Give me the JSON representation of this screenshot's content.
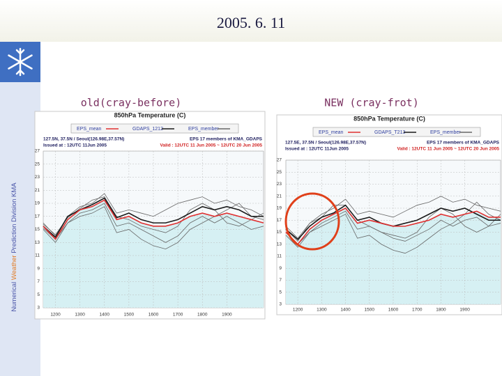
{
  "slide": {
    "title": "2005. 6. 11",
    "sidebar": [
      "Numerical",
      "Weather",
      "Prediction Division  KMA"
    ],
    "captions": [
      "old(cray-before)",
      "NEW (cray-frot)"
    ]
  },
  "chart_data": [
    {
      "type": "line",
      "title": "850hPa Temperature (C)",
      "info": [
        "127.5N, 37.5N / Seoul(126.98E,37.57N)",
        "Issued at : 12UTC 11Jun 2005",
        "EPS 17 members of KMA_GDAPS",
        "Valid : 12UTC 11 Jun 2005 ~ 12UTC 20 Jun 2005"
      ],
      "x": [
        11.5,
        12,
        12.5,
        13,
        13.5,
        14,
        14.5,
        15,
        15.5,
        16,
        16.5,
        17,
        17.5,
        18,
        18.5,
        19,
        19.5,
        20,
        20.5
      ],
      "xlim": [
        11.5,
        20.5
      ],
      "xticks": [
        {
          "value": 12,
          "label": "1200"
        },
        {
          "value": 13,
          "label": "1300"
        },
        {
          "value": 14,
          "label": "1400"
        },
        {
          "value": 15,
          "label": "1500"
        },
        {
          "value": 16,
          "label": "1600"
        },
        {
          "value": 17,
          "label": "1700"
        },
        {
          "value": 18,
          "label": "1800"
        },
        {
          "value": 19,
          "label": "1900"
        }
      ],
      "ylim": [
        3,
        27
      ],
      "yticks": [
        3,
        5,
        7,
        9,
        11,
        13,
        15,
        17,
        19,
        21,
        23,
        25,
        27
      ],
      "grid": true,
      "series": [
        {
          "name": "EPS_mean",
          "color": "#e03030",
          "values": [
            15.5,
            13.5,
            16.5,
            18,
            18.5,
            19.5,
            16.5,
            17,
            16,
            15.5,
            15.5,
            16,
            17,
            17.5,
            17,
            17.5,
            17,
            16.5,
            16
          ]
        },
        {
          "name": "GDAPS_1212",
          "color": "#1a1a1a",
          "values": [
            15.5,
            13.8,
            17,
            18,
            18.8,
            19.8,
            16.8,
            17.5,
            16.5,
            16,
            16,
            16.5,
            17.5,
            18.5,
            18,
            18.5,
            18,
            17,
            17
          ]
        },
        {
          "name": "EPS_member",
          "color": "#666666",
          "values": [
            15,
            13,
            16,
            17.5,
            18,
            19,
            15.5,
            16,
            15,
            14,
            13,
            14,
            16,
            17,
            16,
            17,
            16,
            15,
            15.5
          ]
        },
        {
          "color": "#666666",
          "values": [
            16,
            14,
            17,
            18.5,
            19,
            20.5,
            17.5,
            18,
            17.5,
            17,
            18,
            19,
            19.5,
            20,
            19,
            19.5,
            18.5,
            18,
            17
          ]
        },
        {
          "color": "#666666",
          "values": [
            15.2,
            13.5,
            16,
            17,
            17.5,
            18.5,
            14.5,
            15,
            13.5,
            12.5,
            12,
            13,
            15,
            16,
            17,
            18,
            19,
            17,
            16.5
          ]
        },
        {
          "color": "#666666",
          "values": [
            15.8,
            14.2,
            16.8,
            18.2,
            19.5,
            20,
            17,
            16.5,
            15.5,
            15,
            14.5,
            15.5,
            18,
            19,
            18,
            16,
            15.5,
            16.5,
            17.5
          ]
        }
      ]
    },
    {
      "type": "line",
      "title": "850hPa Temperature (C)",
      "info": [
        "127.5E, 37.5N / Seoul(126.98E,37.57N)",
        "Issued at : 12UTC 11Jun 2005",
        "EPS 17 members of KMA_GDAPS",
        "Valid : 12UTC 11 Jun 2005 ~ 12UTC 20 Jun 2005"
      ],
      "x": [
        11.5,
        12,
        12.5,
        13,
        13.5,
        14,
        14.5,
        15,
        15.5,
        16,
        16.5,
        17,
        17.5,
        18,
        18.5,
        19,
        19.5,
        20,
        20.5
      ],
      "xlim": [
        11.5,
        20.5
      ],
      "xticks": [
        {
          "value": 12,
          "label": "1200"
        },
        {
          "value": 13,
          "label": "1300"
        },
        {
          "value": 14,
          "label": "1400"
        },
        {
          "value": 15,
          "label": "1500"
        },
        {
          "value": 16,
          "label": "1600"
        },
        {
          "value": 17,
          "label": "1700"
        },
        {
          "value": 18,
          "label": "1800"
        },
        {
          "value": 19,
          "label": "1900"
        }
      ],
      "ylim": [
        3,
        27
      ],
      "yticks": [
        3,
        5,
        7,
        9,
        11,
        13,
        15,
        17,
        19,
        21,
        23,
        25,
        27
      ],
      "grid": true,
      "series": [
        {
          "name": "EPS_mean",
          "color": "#e03030",
          "values": [
            15,
            13,
            15.5,
            17,
            18,
            19,
            16.5,
            17,
            16.5,
            16,
            16,
            16.5,
            17,
            18,
            17.5,
            18,
            18.5,
            17.5,
            17.5
          ]
        },
        {
          "name": "GDAPS_T213",
          "color": "#1a1a1a",
          "values": [
            15.5,
            13.8,
            16,
            17.5,
            18.2,
            19.5,
            17,
            17.5,
            16.5,
            16,
            16.5,
            17,
            18,
            19,
            18.5,
            19,
            18,
            17,
            17
          ]
        },
        {
          "name": "EPS_member",
          "color": "#666666",
          "values": [
            14.5,
            12.5,
            15,
            16.5,
            17.5,
            18.5,
            15.5,
            16,
            15,
            14,
            13.5,
            14.5,
            15.5,
            17,
            16,
            17,
            17.5,
            16,
            16.5
          ]
        },
        {
          "color": "#666666",
          "values": [
            15.5,
            13.5,
            16.5,
            18,
            19,
            20.5,
            18,
            18.5,
            18,
            17.5,
            18.5,
            19.5,
            20,
            21,
            20,
            20.5,
            19.5,
            19,
            18.5
          ]
        },
        {
          "color": "#666666",
          "values": [
            15,
            13,
            15,
            16,
            17,
            18,
            14,
            14.5,
            13,
            12,
            11.5,
            12.5,
            14,
            15.5,
            16.5,
            18,
            20,
            18,
            17
          ]
        },
        {
          "color": "#666666",
          "values": [
            16,
            14,
            16.5,
            17.5,
            19.5,
            19.5,
            17,
            16,
            15,
            14.5,
            14,
            15,
            17.5,
            19,
            18,
            16,
            15,
            16,
            18
          ]
        }
      ]
    }
  ]
}
